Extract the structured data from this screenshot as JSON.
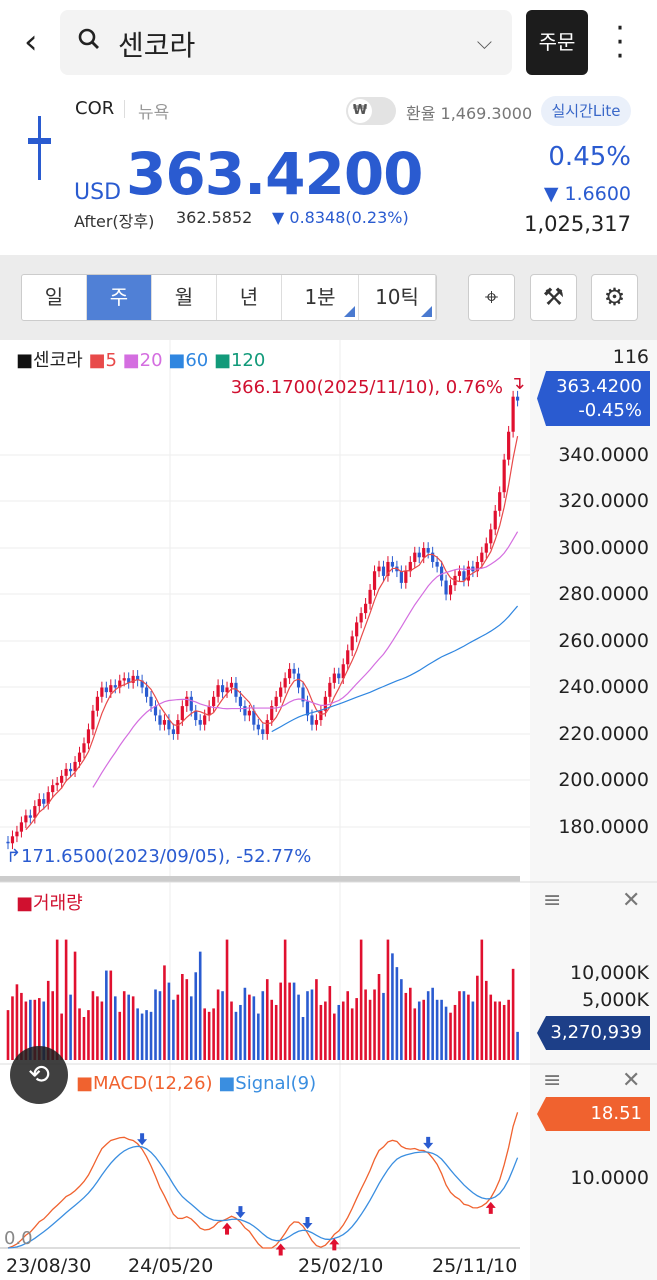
{
  "header": {
    "search_value": "센코라",
    "order_label": "주문"
  },
  "quote": {
    "symbol": "COR",
    "market": "뉴욕",
    "fx_toggle_glyph": "₩",
    "fx_rate": "환율 1,469.3000",
    "realtime_badge": "실시간Lite",
    "currency": "USD",
    "price": "363.4200",
    "after_label": "After(장후)",
    "after_price": "362.5852",
    "after_change": "▼ 0.8348(0.23%)",
    "change_pct": "0.45%",
    "change": "▼ 1.6600",
    "volume": "1,025,317"
  },
  "toolbar": {
    "periods": [
      {
        "label": "일"
      },
      {
        "label": "주",
        "selected": true
      },
      {
        "label": "월"
      },
      {
        "label": "년"
      },
      {
        "label": "1분"
      },
      {
        "label": "10틱"
      }
    ],
    "icons": [
      "crosshair-icon",
      "drawing-tools-icon",
      "settings-gear-icon"
    ]
  },
  "colors": {
    "up": "#e0102f",
    "down": "#2a5bd0",
    "ma5": "#e84a4a",
    "ma20": "#d46ee0",
    "ma60": "#2f86e0",
    "ma120": "#129a7a",
    "macd": "#f0622f",
    "signal": "#3a8ee0"
  },
  "chart_data": {
    "type": "candlestick",
    "legend": {
      "name": "센코라",
      "ma": [
        "5",
        "20",
        "60",
        "120"
      ]
    },
    "max_annotation": "366.1700(2025/11/10), 0.76%",
    "min_annotation": "171.6500(2023/09/05), -52.77%",
    "price_ticks": [
      "116",
      "340.0000",
      "320.0000",
      "300.0000",
      "280.0000",
      "260.0000",
      "240.0000",
      "220.0000",
      "200.0000",
      "180.0000"
    ],
    "current_tag": {
      "price": "363.4200",
      "pct": "-0.45%"
    },
    "x_ticks": [
      "23/08/30",
      "24/05/20",
      "25/02/10",
      "25/11/10"
    ],
    "closes": [
      173,
      176,
      178,
      182,
      185,
      184,
      189,
      192,
      190,
      195,
      198,
      199,
      202,
      205,
      204,
      208,
      212,
      216,
      222,
      230,
      236,
      240,
      238,
      241,
      240,
      243,
      244,
      242,
      245,
      243,
      240,
      236,
      232,
      228,
      224,
      226,
      222,
      220,
      226,
      232,
      236,
      230,
      226,
      224,
      228,
      232,
      236,
      241,
      238,
      240,
      242,
      236,
      232,
      228,
      230,
      224,
      222,
      220,
      226,
      232,
      236,
      240,
      244,
      248,
      246,
      240,
      234,
      228,
      224,
      226,
      230,
      236,
      242,
      246,
      244,
      250,
      256,
      262,
      268,
      272,
      276,
      282,
      290,
      292,
      288,
      294,
      292,
      290,
      285,
      290,
      294,
      298,
      296,
      300,
      298,
      294,
      292,
      286,
      280,
      284,
      288,
      290,
      286,
      292,
      290,
      294,
      298,
      302,
      308,
      316,
      324,
      338,
      350,
      365.08,
      363.42
    ],
    "volume": {
      "label": "거래량",
      "ticks": [
        "10,000K",
        "5,000K"
      ],
      "current": "3,270,939",
      "values_k": [
        5800,
        7400,
        8800,
        7800,
        6800,
        7000,
        7000,
        7200,
        6800,
        9200,
        8000,
        14000,
        5400,
        14000,
        7600,
        12600,
        6000,
        5000,
        5800,
        8000,
        7400,
        6800,
        10400,
        10400,
        7400,
        5600,
        8000,
        7600,
        7400,
        6000,
        5400,
        5800,
        5600,
        8200,
        8000,
        11000,
        9000,
        7000,
        7600,
        10000,
        9400,
        7400,
        10200,
        12600,
        6000,
        5600,
        6000,
        8200,
        8000,
        14000,
        6800,
        5600,
        6400,
        8400,
        7600,
        7400,
        5400,
        8000,
        9400,
        7000,
        6400,
        9000,
        14000,
        9000,
        9000,
        7600,
        5000,
        8000,
        8200,
        9400,
        6400,
        6800,
        8600,
        5400,
        6400,
        6800,
        8000,
        6000,
        7200,
        14000,
        8200,
        7000,
        8200,
        10000,
        7800,
        14000,
        12400,
        10800,
        9400,
        7800,
        8400,
        6000,
        6800,
        7000,
        8000,
        8400,
        7000,
        7000,
        6200,
        5500,
        6400,
        8000,
        8000,
        7600,
        6800,
        9800,
        14000,
        9200,
        7600,
        6800,
        6800,
        6400,
        7000,
        10600,
        3271
      ]
    },
    "macd": {
      "label": "MACD(12,26)",
      "signal_label": "Signal(9)",
      "ticks": [
        "10.0000",
        "0.0"
      ],
      "current": "18.51"
    }
  }
}
